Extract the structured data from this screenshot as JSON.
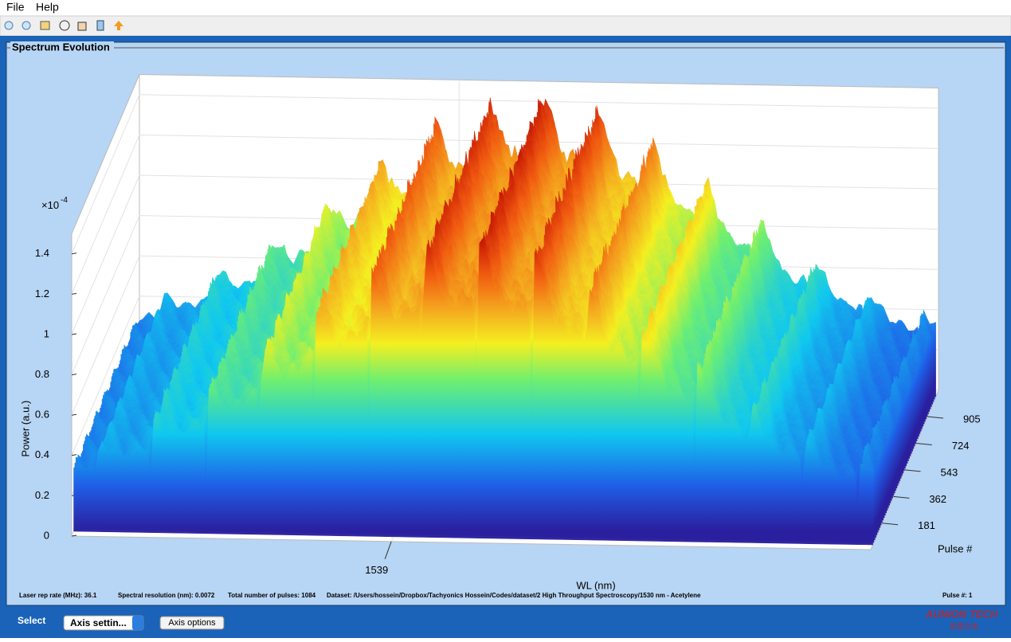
{
  "menu": {
    "items": [
      "File",
      "Help"
    ]
  },
  "panel": {
    "title": "Spectrum Evolution"
  },
  "chart_data": {
    "type": "surface3d",
    "zlabel": "Power (a.u.)",
    "zmultiplier": {
      "base": "×10",
      "exponent": "-4"
    },
    "zlim": [
      0,
      1.5
    ],
    "zticks": [
      0,
      0.2,
      0.4,
      0.6,
      0.8,
      1,
      1.2,
      1.4
    ],
    "xlabel": "WL (nm)",
    "xlim": [
      1530,
      1552.5
    ],
    "xticks": [
      1539
    ],
    "ylabel": "Pulse #",
    "ylim": [
      1,
      1084
    ],
    "yticks": [
      181,
      362,
      543,
      724,
      905
    ],
    "grid": true
  },
  "status": [
    "Laser rep rate (MHz): 36.1",
    "Spectral resolution (nm): 0.0072",
    "Total number of pulses: 1084",
    "Dataset:  /Users/hossein/Dropbox/Tachyonics Hossein/Codes/dataset/2 High Throughput Spectroscopy/1530 nm - Acetylene",
    "Pulse #: 1"
  ],
  "controls": {
    "select_label": "Select",
    "dropdown": "Axis settin...",
    "button": "Axis options"
  },
  "watermark": {
    "brand": "AUNION TECH",
    "sub": "昊量光电"
  }
}
